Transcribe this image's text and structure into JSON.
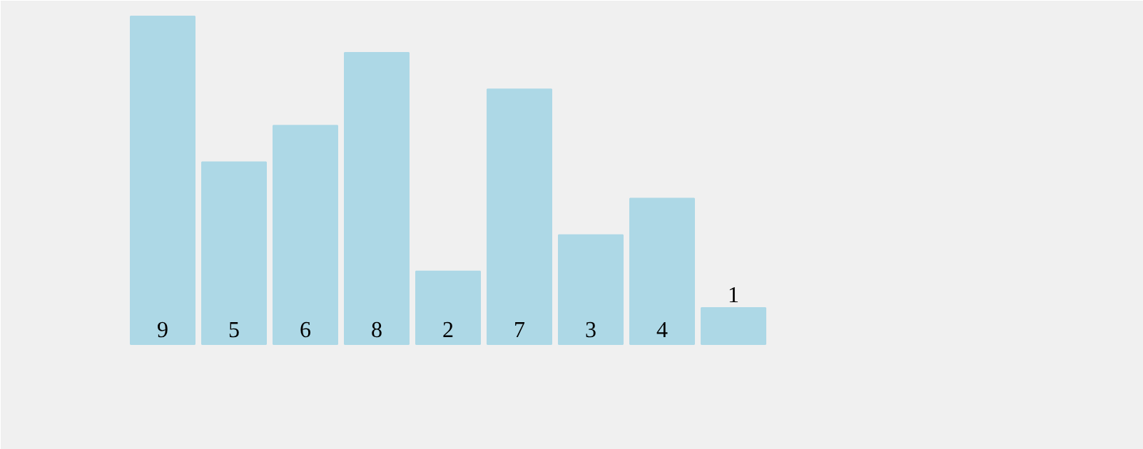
{
  "chart_data": {
    "type": "bar",
    "categories": [
      null,
      null,
      null,
      null,
      null,
      null,
      null,
      null,
      null
    ],
    "values": [
      9,
      5,
      6,
      8,
      2,
      7,
      3,
      4,
      1
    ],
    "color": "#add8e6",
    "data_labels": true
  }
}
